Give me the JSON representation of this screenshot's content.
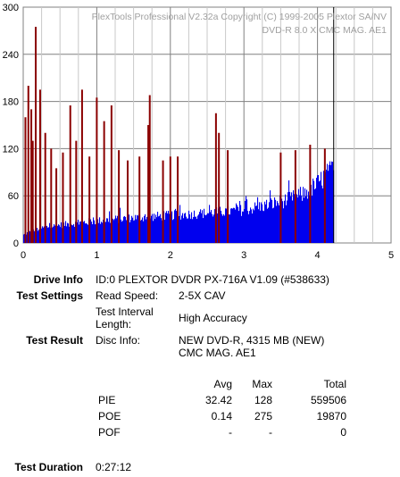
{
  "chart_data": {
    "type": "bar",
    "watermark_line1": "PlexTools Professional V2.32a Copyright (C) 1999-2005 Plextor SA/NV",
    "watermark_line2": "DVD-R   8.0 X   CMC MAG. AE1",
    "xlim": [
      0,
      5
    ],
    "ylim": [
      0,
      300
    ],
    "x_ticks": [
      "0",
      "1",
      "2",
      "3",
      "4",
      "5"
    ],
    "y_ticks": [
      "0",
      "60",
      "120",
      "180",
      "240",
      "300"
    ],
    "grid": true,
    "end_marker_x": 4.22,
    "series": [
      {
        "color": "#0000ee",
        "profile_x": [
          0.0,
          0.1,
          0.3,
          0.6,
          1.0,
          1.5,
          2.0,
          2.5,
          3.0,
          3.3,
          3.6,
          3.8,
          4.0,
          4.1,
          4.22
        ],
        "profile_y": [
          10,
          15,
          20,
          24,
          28,
          32,
          35,
          38,
          42,
          48,
          55,
          62,
          75,
          85,
          92
        ]
      },
      {
        "color": "#8b0000",
        "x": [
          0.03,
          0.07,
          0.11,
          0.13,
          0.17,
          0.23,
          0.3,
          0.38,
          0.45,
          0.54,
          0.64,
          0.72,
          0.8,
          0.9,
          1.0,
          1.1,
          1.2,
          1.3,
          1.42,
          1.58,
          1.7,
          1.72,
          1.9,
          2.0,
          2.1,
          2.62,
          2.66,
          2.78,
          3.5,
          3.7,
          3.9,
          4.1
        ],
        "y": [
          160,
          200,
          170,
          130,
          275,
          195,
          140,
          120,
          95,
          115,
          175,
          130,
          195,
          110,
          185,
          155,
          175,
          118,
          105,
          110,
          150,
          188,
          105,
          110,
          110,
          165,
          140,
          118,
          115,
          118,
          125,
          120
        ]
      }
    ]
  },
  "info": {
    "drive_info_label": "Drive Info",
    "drive_info_value": "ID:0 PLEXTOR DVDR PX-716A V1.09 (#538633)",
    "test_settings_label": "Test Settings",
    "read_speed_label": "Read Speed:",
    "read_speed_value": "2-5X CAV",
    "interval_label_1": "Test Interval",
    "interval_label_2": "Length:",
    "interval_value": "High Accuracy",
    "test_result_label": "Test Result",
    "disc_info_label": "Disc Info:",
    "disc_info_line1": "NEW DVD-R, 4315 MB (NEW)",
    "disc_info_line2": "CMC MAG. AE1",
    "test_duration_label": "Test Duration",
    "test_duration_value": "0:27:12"
  },
  "results": {
    "headers": {
      "avg": "Avg",
      "max": "Max",
      "total": "Total"
    },
    "rows": [
      {
        "name": "PIE",
        "avg": "32.42",
        "max": "128",
        "total": "559506"
      },
      {
        "name": "POE",
        "avg": "0.14",
        "max": "275",
        "total": "19870"
      },
      {
        "name": "POF",
        "avg": "-",
        "max": "-",
        "total": "0"
      }
    ]
  }
}
